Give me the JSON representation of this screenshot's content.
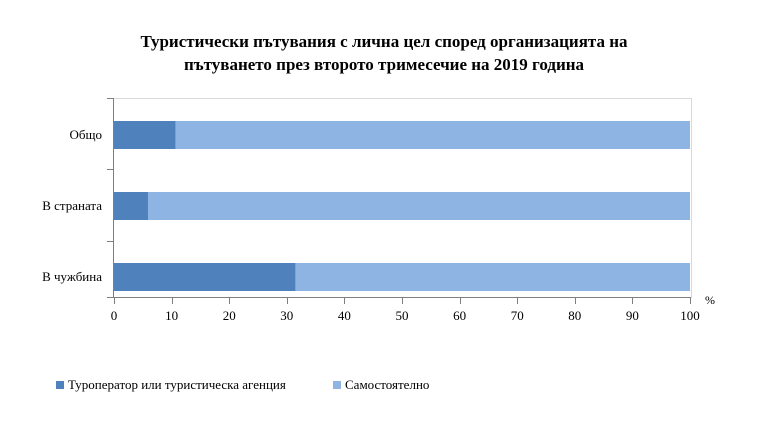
{
  "chart_data": {
    "type": "bar",
    "orientation": "horizontal",
    "stacked": true,
    "title_lines": [
      "Туристически пътувания с лична цел според организацията на",
      "пътуването през второто тримесечие на 2019 година"
    ],
    "categories": [
      "Общо",
      "В страната",
      "В чужбина"
    ],
    "series": [
      {
        "name": "Туроператор или туристическа агенция",
        "values": [
          10.7,
          5.9,
          31.5
        ],
        "color": "#4f81bd"
      },
      {
        "name": "Самостоятелно",
        "values": [
          89.3,
          94.1,
          68.5
        ],
        "color": "#8eb4e3"
      }
    ],
    "xlim": [
      0,
      100
    ],
    "xticks": [
      0,
      10,
      20,
      30,
      40,
      50,
      60,
      70,
      80,
      90,
      100
    ],
    "x_unit": "%",
    "grid": false,
    "legend_position": "bottom"
  }
}
